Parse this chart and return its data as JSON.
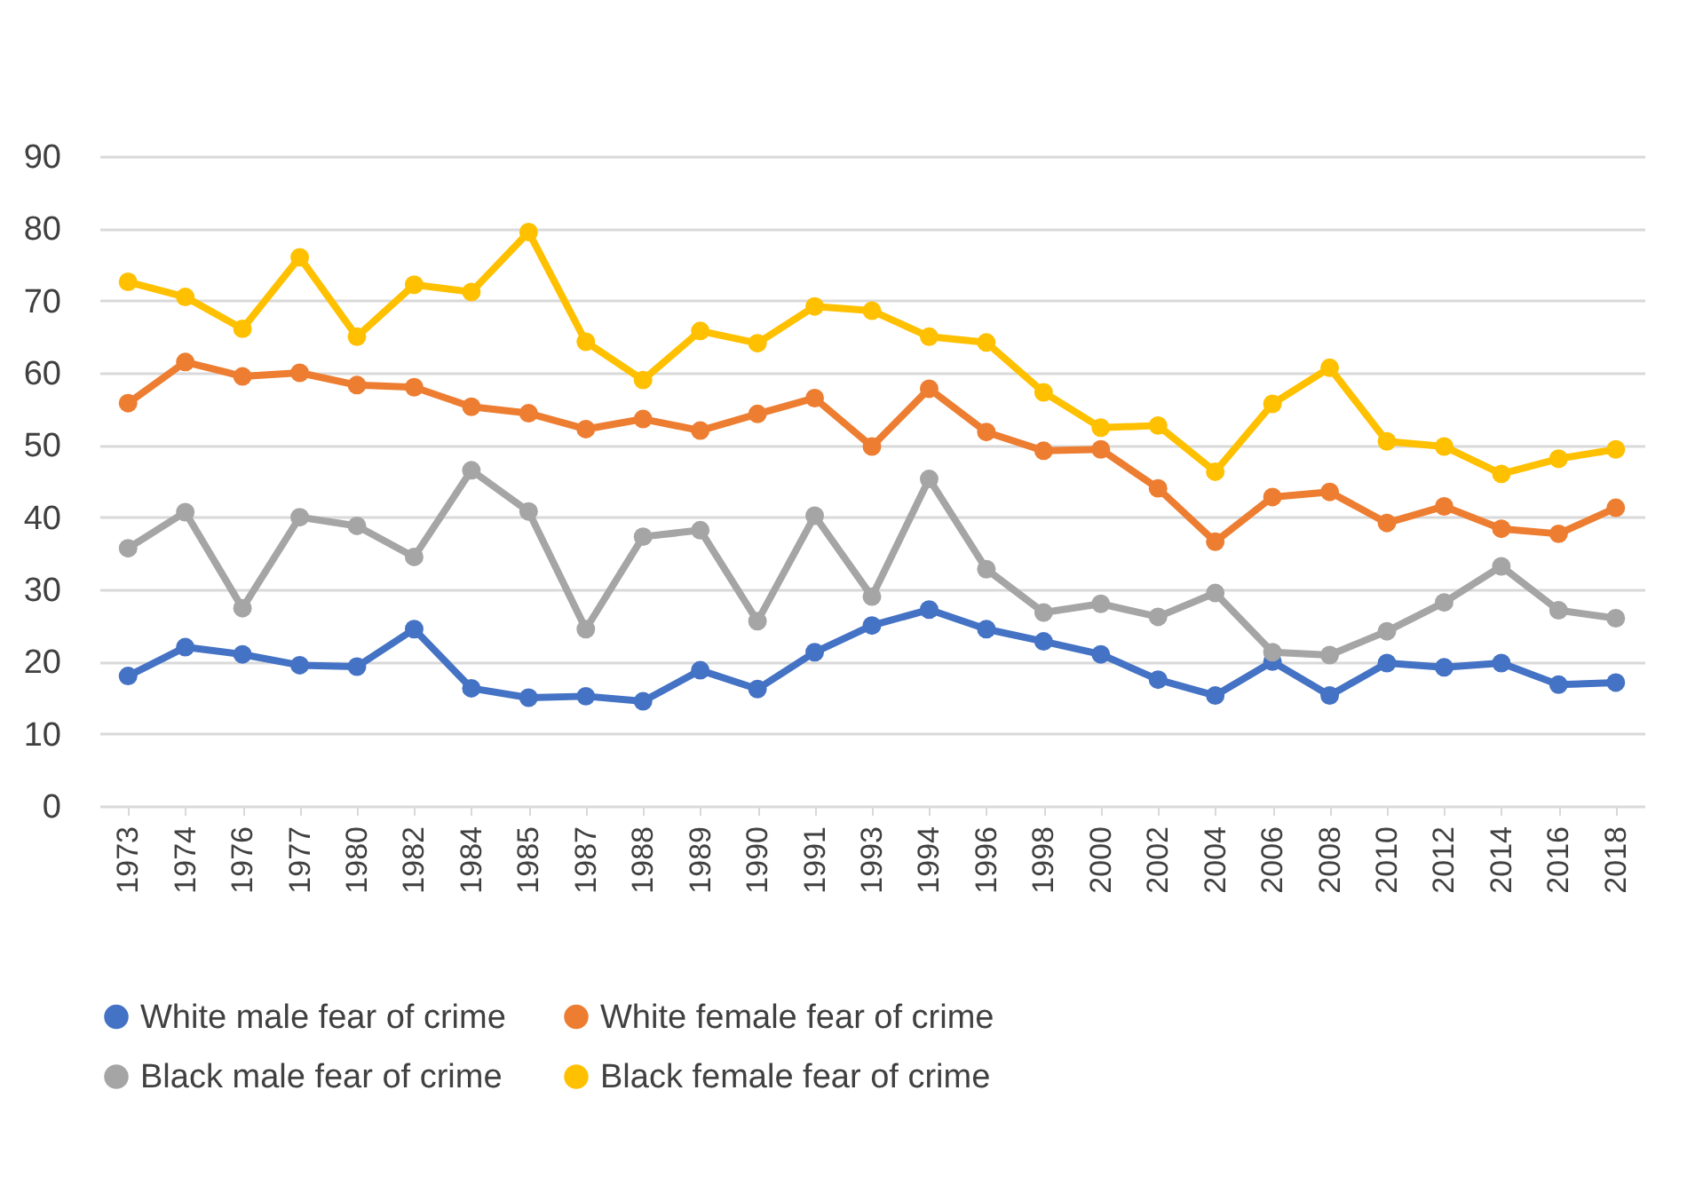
{
  "chart_data": {
    "type": "line",
    "categories": [
      "1973",
      "1974",
      "1976",
      "1977",
      "1980",
      "1982",
      "1984",
      "1985",
      "1987",
      "1988",
      "1989",
      "1990",
      "1991",
      "1993",
      "1994",
      "1996",
      "1998",
      "2000",
      "2002",
      "2004",
      "2006",
      "2008",
      "2010",
      "2012",
      "2014",
      "2016",
      "2018"
    ],
    "series": [
      {
        "name": "White male fear of crime",
        "color": "#4472c4",
        "values": [
          18,
          22,
          21,
          19.5,
          19.3,
          24.5,
          16.3,
          15,
          15.2,
          14.5,
          18.8,
          16.2,
          21.3,
          25,
          27.2,
          24.5,
          22.8,
          21,
          17.5,
          15.3,
          20,
          15.3,
          19.8,
          19.2,
          19.8,
          16.8,
          17.1
        ]
      },
      {
        "name": "White female fear of crime",
        "color": "#ed7d31",
        "values": [
          55.8,
          61.5,
          59.5,
          60,
          58.3,
          58,
          55.3,
          54.4,
          52.2,
          53.6,
          52,
          54.3,
          56.5,
          49.8,
          57.8,
          51.8,
          49.2,
          49.4,
          44,
          36.6,
          42.8,
          43.5,
          39.2,
          41.5,
          38.4,
          37.7,
          41.3
        ]
      },
      {
        "name": "Black male fear of crime",
        "color": "#a5a5a5",
        "values": [
          35.7,
          40.7,
          27.4,
          40,
          38.8,
          34.5,
          46.5,
          40.8,
          24.5,
          37.3,
          38.2,
          25.6,
          40.2,
          29,
          45.3,
          32.8,
          26.8,
          28,
          26.2,
          29.5,
          21.3,
          20.9,
          24.2,
          28.2,
          33.2,
          27.1,
          26
        ]
      },
      {
        "name": "Black female fear of crime",
        "color": "#ffc000",
        "values": [
          72.6,
          70.5,
          66.1,
          76,
          65,
          72.2,
          71.2,
          79.5,
          64.3,
          59,
          65.8,
          64.1,
          69.2,
          68.6,
          65,
          64.2,
          57.3,
          52.4,
          52.7,
          46.3,
          55.7,
          60.7,
          50.5,
          49.8,
          46,
          48.1,
          49.4
        ]
      }
    ],
    "ylim": [
      0,
      90
    ],
    "yticks": [
      0,
      10,
      20,
      30,
      40,
      50,
      60,
      70,
      80,
      90
    ],
    "grid": "y",
    "legend": "bottom",
    "marker": "circle",
    "line_style": "solid"
  }
}
